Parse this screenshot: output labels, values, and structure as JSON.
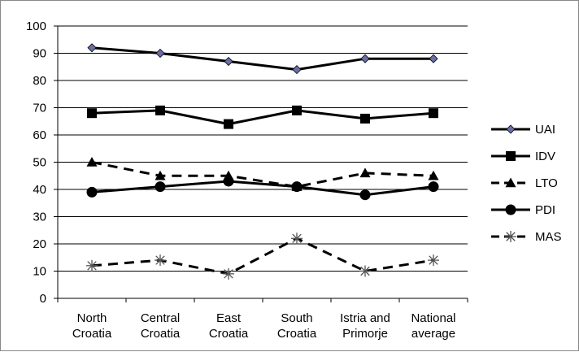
{
  "chart_data": {
    "type": "line",
    "title": "",
    "xlabel": "",
    "ylabel": "",
    "categories": [
      [
        "North",
        "Croatia"
      ],
      [
        "Central",
        "Croatia"
      ],
      [
        "East",
        "Croatia"
      ],
      [
        "South",
        "Croatia"
      ],
      [
        "Istria and",
        "Primorje"
      ],
      [
        "National",
        "average"
      ]
    ],
    "ylim": [
      0,
      100
    ],
    "yticks": [
      "0",
      "10",
      "20",
      "30",
      "40",
      "50",
      "60",
      "70",
      "80",
      "90",
      "100"
    ],
    "grid": true,
    "legend_position": "right",
    "series": [
      {
        "name": "UAI",
        "values": [
          92,
          90,
          87,
          84,
          88,
          88
        ],
        "marker": "diamond",
        "dash": "solid",
        "color": "#000000",
        "marker_color": "#6b6fa6"
      },
      {
        "name": "IDV",
        "values": [
          68,
          69,
          64,
          69,
          66,
          68
        ],
        "marker": "square",
        "dash": "solid",
        "color": "#000000",
        "marker_color": "#000000"
      },
      {
        "name": "LTO",
        "values": [
          50,
          45,
          45,
          41,
          46,
          45
        ],
        "marker": "triangle",
        "dash": "dashed",
        "color": "#000000",
        "marker_color": "#000000"
      },
      {
        "name": "PDI",
        "values": [
          39,
          41,
          43,
          41,
          38,
          41
        ],
        "marker": "circle",
        "dash": "solid",
        "color": "#000000",
        "marker_color": "#000000"
      },
      {
        "name": "MAS",
        "values": [
          12,
          14,
          9,
          22,
          10,
          14
        ],
        "marker": "star",
        "dash": "dashed",
        "color": "#000000",
        "marker_color": "#555555"
      }
    ]
  }
}
